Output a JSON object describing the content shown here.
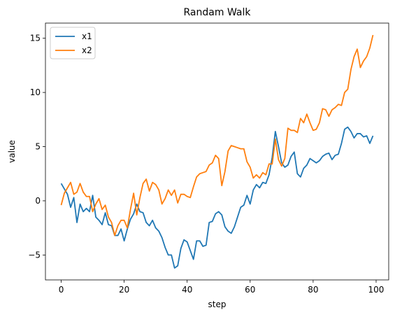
{
  "chart_data": {
    "type": "line",
    "title": "Randam Walk",
    "xlabel": "step",
    "ylabel": "value",
    "xlim": [
      -5,
      104
    ],
    "ylim": [
      -7.3,
      16.4
    ],
    "xticks": [
      0,
      20,
      40,
      60,
      80,
      100
    ],
    "yticks": [
      -5,
      0,
      5,
      10,
      15
    ],
    "legend_position": "upper-left",
    "grid": false,
    "x": [
      0,
      1,
      2,
      3,
      4,
      5,
      6,
      7,
      8,
      9,
      10,
      11,
      12,
      13,
      14,
      15,
      16,
      17,
      18,
      19,
      20,
      21,
      22,
      23,
      24,
      25,
      26,
      27,
      28,
      29,
      30,
      31,
      32,
      33,
      34,
      35,
      36,
      37,
      38,
      39,
      40,
      41,
      42,
      43,
      44,
      45,
      46,
      47,
      48,
      49,
      50,
      51,
      52,
      53,
      54,
      55,
      56,
      57,
      58,
      59,
      60,
      61,
      62,
      63,
      64,
      65,
      66,
      67,
      68,
      69,
      70,
      71,
      72,
      73,
      74,
      75,
      76,
      77,
      78,
      79,
      80,
      81,
      82,
      83,
      84,
      85,
      86,
      87,
      88,
      89,
      90,
      91,
      92,
      93,
      94,
      95,
      96,
      97,
      98,
      99
    ],
    "series": [
      {
        "name": "x1",
        "color": "#1f77b4",
        "values": [
          1.6,
          1.1,
          0.6,
          -0.6,
          0.3,
          -2.0,
          -0.3,
          -1.0,
          -0.7,
          -1.0,
          0.5,
          -1.5,
          -1.8,
          -2.2,
          -1.1,
          -2.2,
          -2.3,
          -3.2,
          -3.2,
          -2.6,
          -3.7,
          -2.6,
          -1.7,
          -1.2,
          -0.3,
          -1.0,
          -1.1,
          -2.0,
          -2.3,
          -1.8,
          -2.5,
          -2.8,
          -3.4,
          -4.3,
          -5.0,
          -5.0,
          -6.2,
          -6.0,
          -4.4,
          -3.6,
          -3.8,
          -4.6,
          -5.4,
          -3.7,
          -3.7,
          -4.2,
          -4.1,
          -2.0,
          -1.9,
          -1.2,
          -1.0,
          -1.3,
          -2.4,
          -2.8,
          -3.0,
          -2.4,
          -1.5,
          -0.6,
          -0.4,
          0.5,
          -0.3,
          1.0,
          1.5,
          1.2,
          1.7,
          1.6,
          2.4,
          4.0,
          6.4,
          5.0,
          3.5,
          3.1,
          3.3,
          4.1,
          4.5,
          2.5,
          2.2,
          3.0,
          3.3,
          3.9,
          3.7,
          3.5,
          3.7,
          4.1,
          4.3,
          4.4,
          3.8,
          4.2,
          4.3,
          5.3,
          6.6,
          6.8,
          6.4,
          5.8,
          6.2,
          6.2,
          5.9,
          6.0,
          5.3,
          6.0
        ]
      },
      {
        "name": "x2",
        "color": "#ff7f0e",
        "values": [
          -0.4,
          0.7,
          1.2,
          1.7,
          0.6,
          0.8,
          1.6,
          0.8,
          0.4,
          0.4,
          -1.0,
          -0.3,
          0.2,
          -0.8,
          -0.4,
          -1.5,
          -2.0,
          -3.2,
          -2.3,
          -1.8,
          -1.8,
          -2.5,
          -0.8,
          0.7,
          -1.3,
          0.3,
          1.6,
          2.0,
          0.9,
          1.7,
          1.5,
          1.0,
          -0.3,
          0.2,
          1.0,
          0.5,
          1.0,
          -0.2,
          0.6,
          0.6,
          0.4,
          0.3,
          1.3,
          2.2,
          2.5,
          2.6,
          2.7,
          3.3,
          3.5,
          4.2,
          3.9,
          1.4,
          2.7,
          4.6,
          5.1,
          5.0,
          4.9,
          4.8,
          4.8,
          3.6,
          3.1,
          2.1,
          2.4,
          2.1,
          2.6,
          2.4,
          3.4,
          3.4,
          5.7,
          3.8,
          3.2,
          3.9,
          6.7,
          6.5,
          6.5,
          6.3,
          7.6,
          7.2,
          8.0,
          7.2,
          6.5,
          6.6,
          7.2,
          8.5,
          8.4,
          7.8,
          8.4,
          8.6,
          8.9,
          8.8,
          10.0,
          10.3,
          12.1,
          13.3,
          14.0,
          12.3,
          12.9,
          13.3,
          14.1,
          15.3
        ]
      }
    ]
  }
}
